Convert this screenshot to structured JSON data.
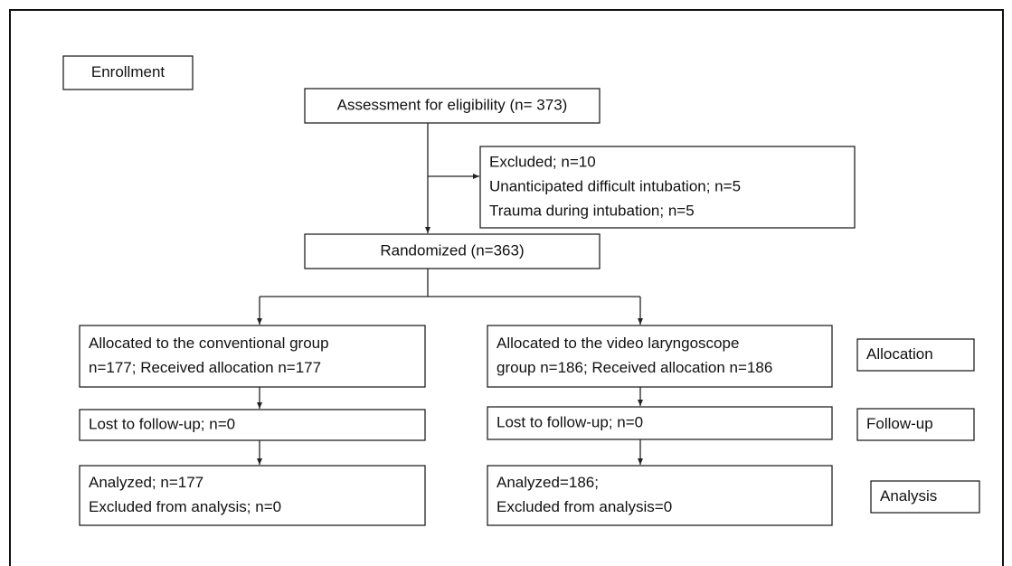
{
  "nodes": [
    {
      "lines": [
        "Enrollment"
      ]
    },
    {
      "lines": [
        "Assessment for eligibility (n= 373)"
      ]
    },
    {
      "lines": [
        "Excluded; n=10",
        "Unanticipated difficult intubation; n=5",
        "Trauma during intubation; n=5"
      ]
    },
    {
      "lines": [
        "Randomized (n=363)"
      ]
    },
    {
      "lines": [
        "Allocated to the conventional group",
        "n=177; Received allocation n=177"
      ]
    },
    {
      "lines": [
        "Allocated to the video laryngoscope",
        "group n=186; Received allocation n=186"
      ]
    },
    {
      "lines": [
        "Allocation"
      ]
    },
    {
      "lines": [
        "Lost to follow-up; n=0"
      ]
    },
    {
      "lines": [
        "Lost to follow-up; n=0"
      ]
    },
    {
      "lines": [
        "Follow-up"
      ]
    },
    {
      "lines": [
        "Analyzed; n=177",
        "Excluded from analysis; n=0"
      ]
    },
    {
      "lines": [
        "Analyzed=186;",
        "Excluded from analysis=0"
      ]
    },
    {
      "lines": [
        "Analysis"
      ]
    }
  ]
}
